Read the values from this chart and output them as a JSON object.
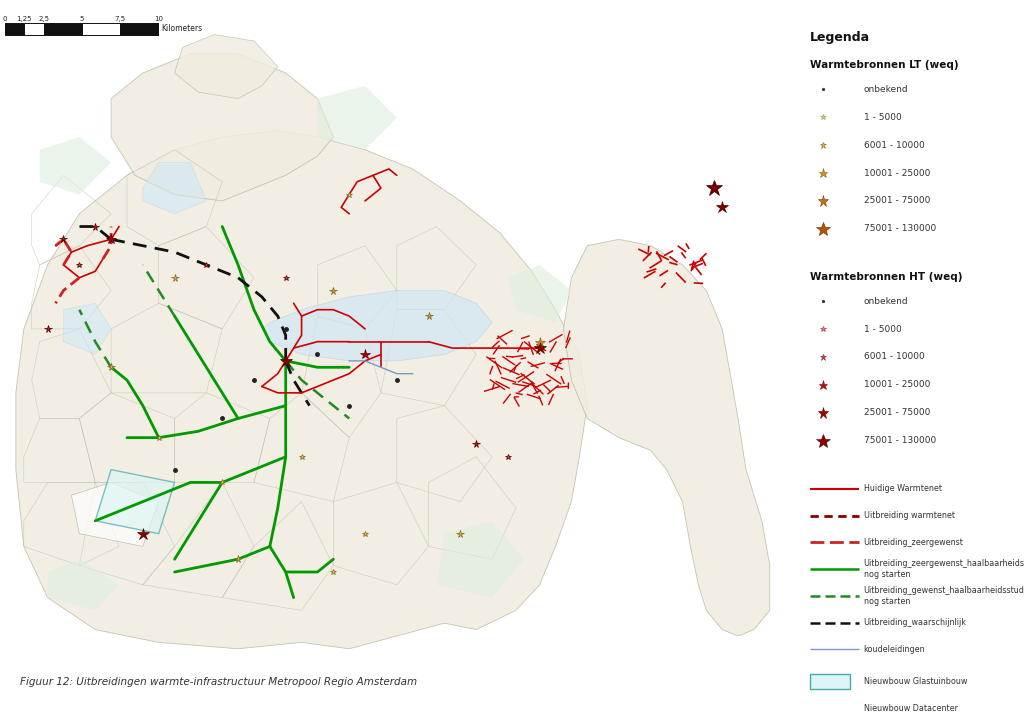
{
  "background_color": "#ffffff",
  "fig_caption": "Figuur 12: Uitbreidingen warmte-infrastructuur Metropool Regio Amsterdam",
  "legend_title": "Legenda",
  "lt_section": "Warmtebronnen LT (weq)",
  "ht_section": "Warmtebronnen HT (weq)",
  "lt_items": [
    {
      "label": "onbekend",
      "marker": "o",
      "color": "#333333",
      "size": 3.5,
      "edge": "#333333"
    },
    {
      "label": "1 - 5000",
      "marker": "*",
      "color": "#e8c060",
      "size": 7,
      "edge": "#999966"
    },
    {
      "label": "6001 - 10000",
      "marker": "*",
      "color": "#e8b040",
      "size": 9,
      "edge": "#886622"
    },
    {
      "label": "10001 - 25000",
      "marker": "*",
      "color": "#d49020",
      "size": 12,
      "edge": "#886622"
    },
    {
      "label": "25001 - 75000",
      "marker": "*",
      "color": "#c87010",
      "size": 15,
      "edge": "#774400"
    },
    {
      "label": "75001 - 130000",
      "marker": "*",
      "color": "#b85000",
      "size": 19,
      "edge": "#663300"
    }
  ],
  "ht_items": [
    {
      "label": "onbekend",
      "marker": "o",
      "color": "#333333",
      "size": 3.5,
      "edge": "#333333"
    },
    {
      "label": "1 - 5000",
      "marker": "*",
      "color": "#dd8888",
      "size": 7,
      "edge": "#993333"
    },
    {
      "label": "6001 - 10000",
      "marker": "*",
      "color": "#cc4444",
      "size": 9,
      "edge": "#882222"
    },
    {
      "label": "10001 - 25000",
      "marker": "*",
      "color": "#bb1111",
      "size": 12,
      "edge": "#771111"
    },
    {
      "label": "25001 - 75000",
      "marker": "*",
      "color": "#aa0000",
      "size": 15,
      "edge": "#660000"
    },
    {
      "label": "75001 - 130000",
      "marker": "*",
      "color": "#880000",
      "size": 19,
      "edge": "#550000"
    }
  ],
  "line_items": [
    {
      "label": "Huidige Warmtenet",
      "color": "#cc0000",
      "lw": 1.5,
      "dashes": null
    },
    {
      "label": "Uitbreiding warmtenet",
      "color": "#880000",
      "lw": 2.0,
      "dashes": [
        3,
        2
      ]
    },
    {
      "label": "Uitbreiding_zeergewenst",
      "color": "#cc2222",
      "lw": 2.0,
      "dashes": [
        5,
        2
      ]
    },
    {
      "label": "Uitbreiding_zeergewenst_haalbaarheidsstudie nog starten",
      "color": "#009900",
      "lw": 1.8,
      "dashes": null
    },
    {
      "label": "Uitbreiding_gewenst_haalbaarheidsstudie nog starten",
      "color": "#228b22",
      "lw": 1.8,
      "dashes": [
        4,
        2
      ]
    },
    {
      "label": "Uitbreiding_waarschijnlijk",
      "color": "#111111",
      "lw": 1.8,
      "dashes": [
        4,
        2
      ]
    },
    {
      "label": "koudeleidingen",
      "color": "#7799cc",
      "lw": 1.0,
      "dashes": null
    }
  ],
  "patch_items": [
    {
      "label": "Nieuwbouw Glastuinbouw",
      "facecolor": "#ddf5f5",
      "edgecolor": "#44aaaa",
      "lw": 1.0
    },
    {
      "label": "Nieuwbouw Datacenter",
      "facecolor": "#ffffff",
      "edgecolor": "#444444",
      "lw": 1.0
    }
  ],
  "map_land_color": "#f0ece0",
  "map_border_color": "#bbbbaa",
  "map_water_color": "#d0e8f5",
  "map_green_color": "#ddeedd",
  "map_urban_color": "#eeeae0",
  "map_white_color": "#fafafa"
}
